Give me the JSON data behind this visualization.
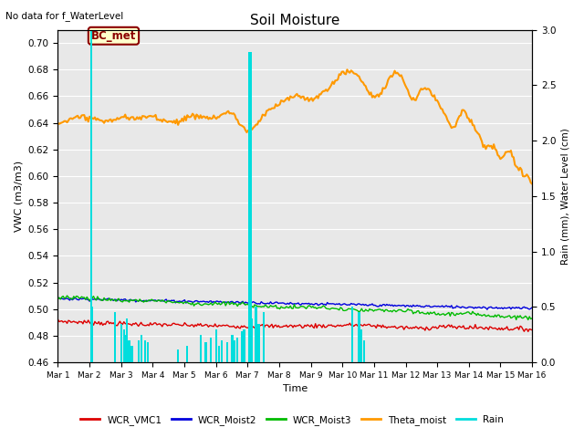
{
  "title": "Soil Moisture",
  "top_left_text": "No data for f_WaterLevel",
  "station_label": "BC_met",
  "ylabel_left": "VWC (m3/m3)",
  "ylabel_right": "Rain (mm), Water Level (cm)",
  "xlabel": "Time",
  "ylim_left": [
    0.46,
    0.71
  ],
  "ylim_right": [
    0.0,
    3.0
  ],
  "yticks_left": [
    0.46,
    0.48,
    0.5,
    0.52,
    0.54,
    0.56,
    0.58,
    0.6,
    0.62,
    0.64,
    0.66,
    0.68,
    0.7
  ],
  "yticks_right": [
    0.0,
    0.5,
    1.0,
    1.5,
    2.0,
    2.5,
    3.0
  ],
  "colors": {
    "WCR_VMC1": "#dd0000",
    "WCR_Moist2": "#0000dd",
    "WCR_Moist3": "#00bb00",
    "Theta_moist": "#ff9900",
    "Rain": "#00dddd",
    "background": "#e8e8e8"
  },
  "x_tick_labels": [
    "Mar 1",
    "Mar 2",
    "Mar 3",
    "Mar 4",
    "Mar 5",
    "Mar 6",
    "Mar 7",
    "Mar 8",
    "Mar 9",
    "Mar 10",
    "Mar 11",
    "Mar 12",
    "Mar 13",
    "Mar 14",
    "Mar 15",
    "Mar 16"
  ],
  "n_points": 360
}
